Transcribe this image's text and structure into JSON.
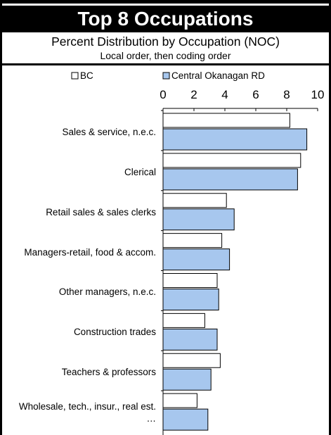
{
  "header": {
    "title": "Top 8 Occupations",
    "subtitle": "Percent Distribution by Occupation (NOC)",
    "note": "Local order, then coding order"
  },
  "colors": {
    "bc": "#ffffff",
    "region": "#a7c7ee",
    "outline": "#000000",
    "title_bg": "#000000"
  },
  "chart_data": {
    "type": "bar",
    "orientation": "horizontal",
    "title": "Top 8 Occupations",
    "subtitle": "Percent Distribution by Occupation (NOC)",
    "categories": [
      "Sales & service, n.e.c.",
      "Clerical",
      "Retail sales & sales clerks",
      "Managers-retail, food & accom.",
      "Other managers, n.e.c.",
      "Construction trades",
      "Teachers & professors",
      "Wholesale, tech., insur., real est. …"
    ],
    "series": [
      {
        "name": "BC",
        "values": [
          8.2,
          8.9,
          4.1,
          3.8,
          3.5,
          2.7,
          3.7,
          2.2
        ]
      },
      {
        "name": "Central Okanagan RD",
        "values": [
          9.3,
          8.7,
          4.6,
          4.3,
          3.6,
          3.5,
          3.1,
          2.9
        ]
      }
    ],
    "xlim": [
      0,
      10
    ],
    "xticks": [
      "0",
      "2",
      "4",
      "6",
      "8",
      "10"
    ],
    "xaxis_position": "top",
    "legend_position": "top",
    "grid": false
  }
}
